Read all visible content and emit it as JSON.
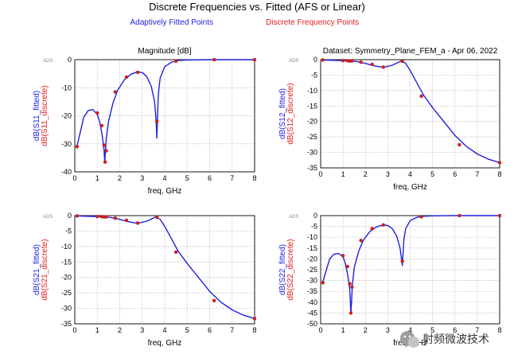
{
  "figure": {
    "title": "Discrete Frequencies vs. Fitted (AFS or Linear)",
    "legend_fitted": "Adaptively Fitted Points",
    "legend_discrete": "Discrete Frequency Points",
    "ads_badge": "ADS",
    "watermark": "射频微波技术"
  },
  "colors": {
    "fitted": "#1f1fe0",
    "discrete": "#e01c1c",
    "grid": "#b9b9b9",
    "frame": "#000000"
  },
  "chart_data": [
    {
      "id": "s11",
      "type": "line",
      "title": "Magnitude [dB]",
      "xlabel": "freq, GHz",
      "ylabel_fitted": "dB(S11_fitted)",
      "ylabel_discrete": "dB(S11_discrete)",
      "xlim": [
        0,
        8
      ],
      "ylim": [
        -40,
        0
      ],
      "xticks": [
        0,
        1,
        2,
        3,
        4,
        5,
        6,
        7,
        8
      ],
      "yticks": [
        0,
        -10,
        -20,
        -30,
        -40
      ],
      "series": [
        {
          "name": "fitted",
          "x": [
            0.1,
            0.4,
            0.6,
            0.8,
            1.0,
            1.1,
            1.2,
            1.3,
            1.33,
            1.36,
            1.4,
            1.5,
            1.7,
            1.9,
            2.2,
            2.5,
            2.8,
            3.0,
            3.2,
            3.4,
            3.55,
            3.62,
            3.65,
            3.68,
            3.72,
            3.8,
            4.0,
            4.3,
            4.6,
            5.0,
            6.0,
            7.0,
            8.0
          ],
          "y": [
            -30.8,
            -20.5,
            -18.1,
            -17.8,
            -19.5,
            -22.0,
            -26.0,
            -32.0,
            -36.5,
            -33.0,
            -28.0,
            -22.0,
            -15.5,
            -11.0,
            -7.2,
            -5.2,
            -4.3,
            -4.6,
            -6.0,
            -9.5,
            -15.0,
            -22.0,
            -28.0,
            -20.0,
            -12.0,
            -6.5,
            -2.5,
            -0.9,
            -0.3,
            -0.1,
            0.0,
            0.0,
            0.0
          ]
        },
        {
          "name": "discrete",
          "x": [
            0.1,
            1.0,
            1.2,
            1.3,
            1.35,
            1.4,
            1.8,
            2.3,
            2.8,
            3.65,
            4.5,
            6.2,
            8.0
          ],
          "y": [
            -31,
            -19,
            -23.5,
            -30.5,
            -36.5,
            -32.5,
            -11.5,
            -6.2,
            -4.5,
            -22.0,
            -0.5,
            0.0,
            0.0
          ]
        }
      ]
    },
    {
      "id": "s12",
      "type": "line",
      "title": "Dataset: Symmetry_Plane_FEM_a - Apr 06, 2022",
      "xlabel": "freq, GHz",
      "ylabel_fitted": "dB(S12_fitted)",
      "ylabel_discrete": "dB(S12_discrete)",
      "xlim": [
        0,
        8
      ],
      "ylim": [
        -35,
        0
      ],
      "xticks": [
        0,
        1,
        2,
        3,
        4,
        5,
        6,
        7,
        8
      ],
      "yticks": [
        0,
        -5,
        -10,
        -15,
        -20,
        -25,
        -30,
        -35
      ],
      "series": [
        {
          "name": "fitted",
          "x": [
            0.1,
            0.5,
            1.0,
            1.3,
            1.6,
            2.0,
            2.4,
            2.8,
            3.2,
            3.6,
            3.8,
            4.0,
            4.3,
            4.6,
            5.0,
            5.5,
            6.0,
            6.5,
            7.0,
            7.5,
            8.0
          ],
          "y": [
            -0.1,
            -0.2,
            -0.3,
            -0.4,
            -0.6,
            -1.2,
            -2.0,
            -2.5,
            -1.8,
            -0.4,
            -1.2,
            -3.5,
            -7.5,
            -11.5,
            -15.5,
            -20.0,
            -24.5,
            -28.0,
            -30.5,
            -32.2,
            -33.3
          ]
        },
        {
          "name": "discrete",
          "x": [
            0.1,
            1.0,
            1.2,
            1.3,
            1.35,
            1.4,
            1.8,
            2.3,
            2.8,
            3.65,
            4.5,
            6.2,
            8.0
          ],
          "y": [
            -0.1,
            -0.3,
            -0.35,
            -0.4,
            -0.4,
            -0.4,
            -0.8,
            -1.5,
            -2.4,
            -0.5,
            -11.8,
            -27.5,
            -33.3
          ]
        }
      ]
    },
    {
      "id": "s21",
      "type": "line",
      "title": "",
      "xlabel": "freq, GHz",
      "ylabel_fitted": "dB(S21_fitted)",
      "ylabel_discrete": "dB(S21_discrete)",
      "xlim": [
        0,
        8
      ],
      "ylim": [
        -35,
        0
      ],
      "xticks": [
        0,
        1,
        2,
        3,
        4,
        5,
        6,
        7,
        8
      ],
      "yticks": [
        0,
        -5,
        -10,
        -15,
        -20,
        -25,
        -30,
        -35
      ],
      "series": [
        {
          "name": "fitted",
          "x": [
            0.1,
            0.5,
            1.0,
            1.3,
            1.6,
            2.0,
            2.4,
            2.8,
            3.2,
            3.6,
            3.8,
            4.0,
            4.3,
            4.6,
            5.0,
            5.5,
            6.0,
            6.5,
            7.0,
            7.5,
            8.0
          ],
          "y": [
            -0.1,
            -0.2,
            -0.3,
            -0.4,
            -0.6,
            -1.2,
            -2.0,
            -2.5,
            -1.8,
            -0.4,
            -1.2,
            -3.5,
            -7.5,
            -11.5,
            -15.5,
            -20.0,
            -24.5,
            -28.0,
            -30.5,
            -32.2,
            -33.3
          ]
        },
        {
          "name": "discrete",
          "x": [
            0.1,
            1.0,
            1.2,
            1.3,
            1.35,
            1.4,
            1.8,
            2.3,
            2.8,
            3.65,
            4.5,
            6.2,
            8.0
          ],
          "y": [
            -0.1,
            -0.3,
            -0.35,
            -0.4,
            -0.4,
            -0.4,
            -0.8,
            -1.5,
            -2.4,
            -0.5,
            -11.8,
            -27.5,
            -33.3
          ]
        }
      ]
    },
    {
      "id": "s22",
      "type": "line",
      "title": "",
      "xlabel": "freq, GHz",
      "ylabel_fitted": "dB(S22_fitted)",
      "ylabel_discrete": "dB(S22_discrete)",
      "xlim": [
        0,
        8
      ],
      "ylim": [
        -50,
        0
      ],
      "xticks": [
        0,
        1,
        2,
        3,
        4,
        5,
        6,
        7,
        8
      ],
      "yticks": [
        0,
        -5,
        -10,
        -15,
        -20,
        -25,
        -30,
        -35,
        -40,
        -45,
        -50
      ],
      "series": [
        {
          "name": "fitted",
          "x": [
            0.1,
            0.4,
            0.6,
            0.8,
            1.0,
            1.1,
            1.2,
            1.3,
            1.35,
            1.38,
            1.42,
            1.5,
            1.7,
            1.9,
            2.2,
            2.5,
            2.8,
            3.0,
            3.2,
            3.4,
            3.55,
            3.62,
            3.65,
            3.68,
            3.72,
            3.8,
            4.0,
            4.3,
            4.6,
            5.0,
            6.0,
            7.0,
            8.0
          ],
          "y": [
            -30.5,
            -20.0,
            -17.8,
            -17.5,
            -19.0,
            -22.0,
            -27.0,
            -34.0,
            -45.0,
            -40.0,
            -32.0,
            -24.0,
            -16.5,
            -11.5,
            -7.3,
            -5.2,
            -4.3,
            -4.6,
            -6.0,
            -9.5,
            -15.0,
            -20.5,
            -23.0,
            -18.0,
            -11.0,
            -6.0,
            -2.3,
            -0.8,
            -0.3,
            -0.1,
            0.0,
            0.0,
            0.0
          ]
        },
        {
          "name": "discrete",
          "x": [
            0.1,
            1.0,
            1.2,
            1.3,
            1.35,
            1.4,
            1.8,
            2.3,
            2.8,
            3.65,
            4.5,
            6.2,
            8.0
          ],
          "y": [
            -31,
            -18.5,
            -23.5,
            -31.5,
            -45.0,
            -33.0,
            -11.5,
            -6.0,
            -4.3,
            -21.0,
            -0.5,
            0.0,
            0.0
          ]
        }
      ]
    }
  ]
}
